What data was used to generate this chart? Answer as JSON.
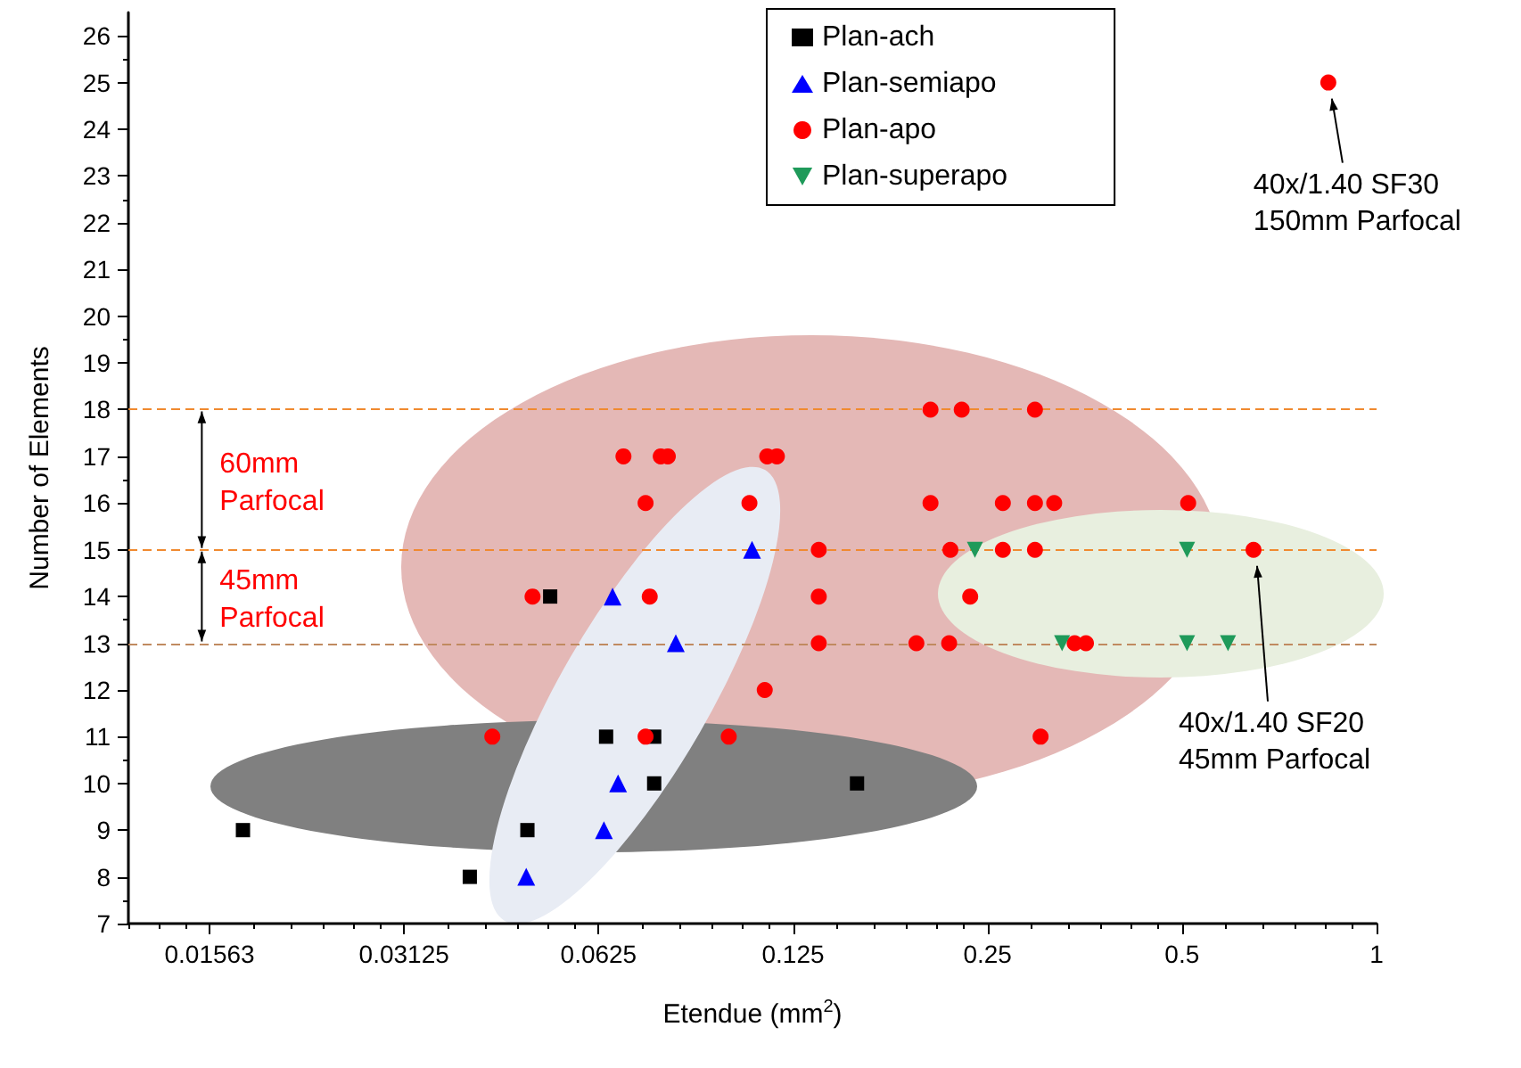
{
  "chart_data": {
    "type": "scatter",
    "xlabel": "Etendue (mm$^{2}$)",
    "ylabel": "Number of Elements",
    "log": "x",
    "xlim": [
      0.0117,
      1
    ],
    "xticks": [
      {
        "value": 0.015625,
        "label": "0.01563"
      },
      0.03125,
      0.0625,
      0.125,
      0.25,
      0.5,
      1
    ],
    "ylim": [
      7,
      26.5
    ],
    "yticks": [
      7,
      8,
      9,
      10,
      11,
      12,
      13,
      14,
      15,
      16,
      17,
      18,
      19,
      20,
      21,
      22,
      23,
      24,
      25,
      26
    ],
    "grid": false,
    "legend": "top right",
    "series": [
      {
        "name": "Plan-ach",
        "color": "#000000",
        "marker": "square",
        "x": [
          0.0176,
          0.0395,
          0.0485,
          0.0526,
          0.0642,
          0.0762,
          0.0762,
          0.157
        ],
        "values": [
          9,
          8,
          9,
          14,
          11,
          11,
          10,
          10
        ]
      },
      {
        "name": "Plan-semiapo",
        "color": "#0000ff",
        "marker": "triangle",
        "x": [
          0.0483,
          0.0637,
          0.067,
          0.0657,
          0.0823,
          0.108
        ],
        "values": [
          8,
          9,
          10,
          14,
          13,
          15
        ]
      },
      {
        "name": "Plan-apo",
        "color": "#ff0000",
        "marker": "circle",
        "x": [
          0.0683,
          0.078,
          0.08,
          0.114,
          0.118,
          0.0739,
          0.107,
          0.137,
          0.0494,
          0.075,
          0.137,
          0.137,
          0.113,
          0.0428,
          0.0739,
          0.0994,
          0.204,
          0.228,
          0.296,
          0.204,
          0.264,
          0.296,
          0.317,
          0.511,
          0.219,
          0.264,
          0.296,
          0.645,
          0.235,
          0.194,
          0.218,
          0.341,
          0.355,
          0.302,
          0.842
        ],
        "values": [
          17,
          17,
          17,
          17,
          17,
          16,
          16,
          15,
          14,
          14,
          14,
          13,
          12,
          11,
          11,
          11,
          18,
          18,
          18,
          16,
          16,
          16,
          16,
          16,
          15,
          15,
          15,
          15,
          14,
          13,
          13,
          13,
          13,
          11,
          25
        ]
      },
      {
        "name": "Plan-superapo",
        "color": "#1f9a5a",
        "marker": "triangle-down",
        "x": [
          0.239,
          0.509,
          0.326,
          0.509,
          0.589
        ],
        "values": [
          15,
          15,
          13,
          13,
          13
        ]
      }
    ],
    "ref_lines": [
      {
        "axis": "y",
        "value": 18,
        "color": "#f08a30",
        "line_style": "dashed"
      },
      {
        "axis": "y",
        "value": 15,
        "color": "#f08a30",
        "line_style": "dashed"
      },
      {
        "axis": "y",
        "value": 13,
        "color": "#c08a60",
        "line_style": "dashed"
      }
    ],
    "annotations": [
      {
        "text": "60mm\nParfocal",
        "x": 0.0152,
        "y": 18
      },
      {
        "text": "45mm\nParfocal",
        "x": 0.0152,
        "y": 15
      },
      {
        "text": "40x/1.40 SF30\n150mm Parfocal",
        "x": 0.842,
        "y": 25
      },
      {
        "text": "40x/1.40 SF20\n45mm Parfocal",
        "x": 0.645,
        "y": 15
      }
    ]
  }
}
